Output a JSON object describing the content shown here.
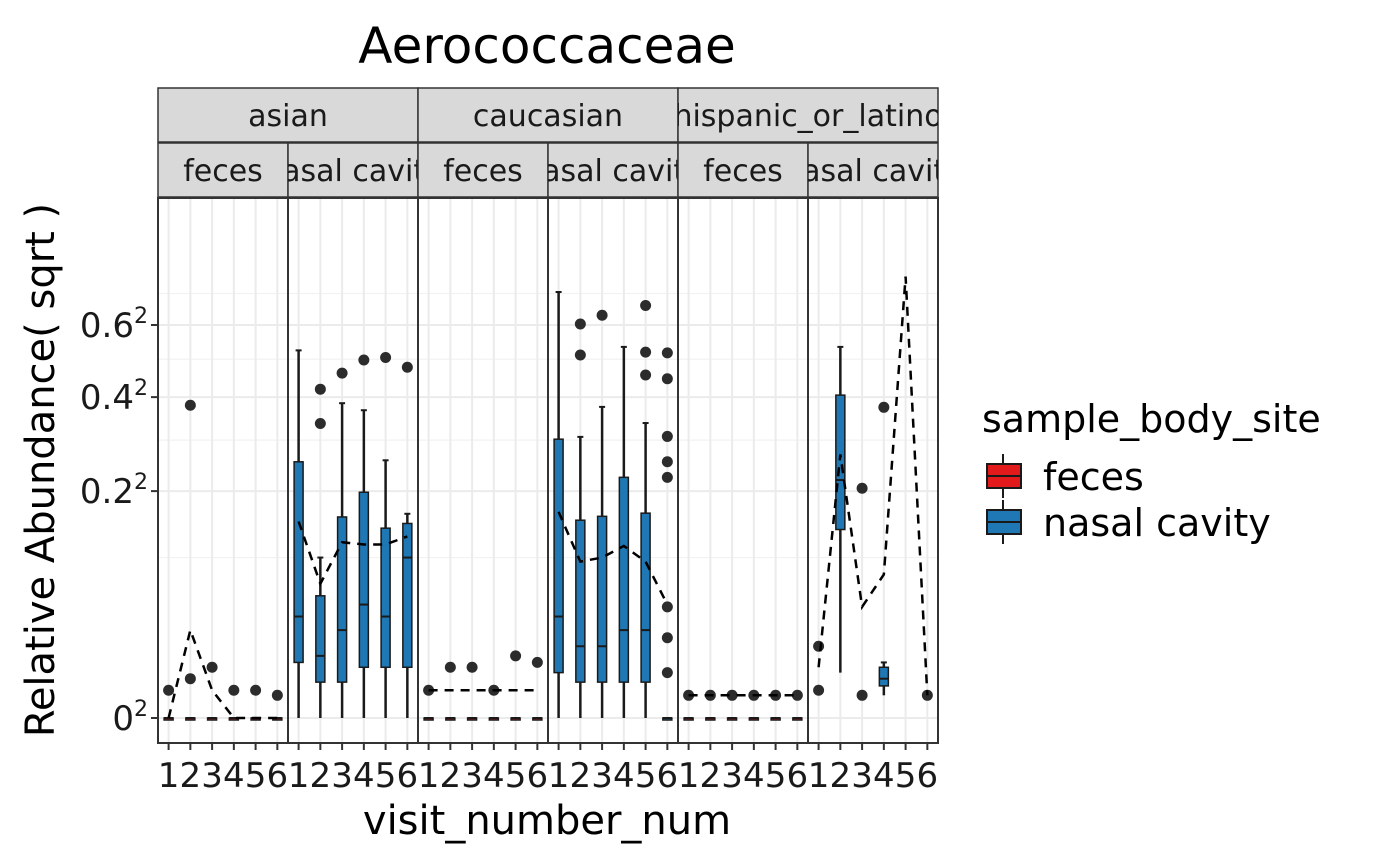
{
  "chart_data": {
    "type": "box",
    "title": "Aerococcaceae",
    "xlabel": "visit_number_num",
    "ylabel": "Relative Abundance( sqrt )",
    "y_scale": "sqrt",
    "ylim": [
      0,
      0.87
    ],
    "y_ticks": [
      0,
      0.2,
      0.4,
      0.6
    ],
    "y_tick_labels": [
      "0",
      "0.2",
      "0.4",
      "0.6"
    ],
    "y_tick_superscript": "2",
    "x_categories": [
      "1",
      "2",
      "3",
      "4",
      "5",
      "6"
    ],
    "facet_rows": [
      "asian",
      "caucasian",
      "hispanic_or_latino"
    ],
    "facet_row_labels": [
      "asian",
      "caucasian",
      "hispanic_or_latino"
    ],
    "facet_cols": [
      "feces",
      "nasal cavity"
    ],
    "facet_col_labels": [
      "feces",
      "nasal cavity"
    ],
    "grid": true,
    "legend": {
      "title": "sample_body_site",
      "position": "right",
      "entries": [
        {
          "name": "feces",
          "color": "#e31a1c"
        },
        {
          "name": "nasal cavity",
          "color": "#1f78b4"
        }
      ]
    },
    "panels": [
      {
        "group": "asian",
        "site": "feces",
        "boxes": [
          {
            "x": 1,
            "q1": 0,
            "median": 0,
            "q3": 0,
            "lo": 0,
            "hi": 0
          },
          {
            "x": 2,
            "q1": 0,
            "median": 0,
            "q3": 0,
            "lo": 0,
            "hi": 0
          },
          {
            "x": 3,
            "q1": 0,
            "median": 0,
            "q3": 0,
            "lo": 0,
            "hi": 0
          },
          {
            "x": 4,
            "q1": 0,
            "median": 0,
            "q3": 0,
            "lo": 0,
            "hi": 0
          },
          {
            "x": 5,
            "q1": 0,
            "median": 0,
            "q3": 0,
            "lo": 0,
            "hi": 0
          },
          {
            "x": 6,
            "q1": 0,
            "median": 0,
            "q3": 0,
            "lo": 0,
            "hi": 0
          }
        ],
        "outliers": [
          [
            2,
            0.38
          ],
          [
            1,
            0.003
          ],
          [
            2,
            0.006
          ],
          [
            3,
            0.01
          ],
          [
            4,
            0.003
          ],
          [
            5,
            0.003
          ],
          [
            6,
            0.002
          ]
        ],
        "mean_line": [
          0,
          0.03,
          0.003,
          0,
          0,
          0
        ]
      },
      {
        "group": "asian",
        "site": "nasal cavity",
        "boxes": [
          {
            "x": 1,
            "q1": 0.012,
            "median": 0.04,
            "q3": 0.255,
            "lo": 0,
            "hi": 0.525
          },
          {
            "x": 2,
            "q1": 0.005,
            "median": 0.015,
            "q3": 0.058,
            "lo": 0,
            "hi": 0.1
          },
          {
            "x": 3,
            "q1": 0.005,
            "median": 0.03,
            "q3": 0.157,
            "lo": 0,
            "hi": 0.385
          },
          {
            "x": 4,
            "q1": 0.01,
            "median": 0.05,
            "q3": 0.198,
            "lo": 0,
            "hi": 0.368
          },
          {
            "x": 5,
            "q1": 0.01,
            "median": 0.04,
            "q3": 0.14,
            "lo": 0,
            "hi": 0.258
          },
          {
            "x": 6,
            "q1": 0.01,
            "median": 0.1,
            "q3": 0.147,
            "lo": 0,
            "hi": 0.162
          }
        ],
        "outliers": [
          [
            2,
            0.42
          ],
          [
            2,
            0.337
          ],
          [
            3,
            0.462
          ],
          [
            4,
            0.498
          ],
          [
            5,
            0.505
          ],
          [
            6,
            0.478
          ]
        ],
        "mean_line": [
          0.15,
          0.07,
          0.12,
          0.117,
          0.117,
          0.128
        ]
      },
      {
        "group": "caucasian",
        "site": "feces",
        "boxes": [
          {
            "x": 1,
            "q1": 0,
            "median": 0,
            "q3": 0,
            "lo": 0,
            "hi": 0
          },
          {
            "x": 2,
            "q1": 0,
            "median": 0,
            "q3": 0,
            "lo": 0,
            "hi": 0
          },
          {
            "x": 3,
            "q1": 0,
            "median": 0,
            "q3": 0,
            "lo": 0,
            "hi": 0
          },
          {
            "x": 4,
            "q1": 0,
            "median": 0,
            "q3": 0,
            "lo": 0,
            "hi": 0
          },
          {
            "x": 5,
            "q1": 0,
            "median": 0,
            "q3": 0,
            "lo": 0,
            "hi": 0
          },
          {
            "x": 6,
            "q1": 0,
            "median": 0,
            "q3": 0,
            "lo": 0,
            "hi": 0
          }
        ],
        "outliers": [
          [
            1,
            0.003
          ],
          [
            2,
            0.01
          ],
          [
            3,
            0.01
          ],
          [
            4,
            0.003
          ],
          [
            5,
            0.015
          ],
          [
            6,
            0.012
          ]
        ],
        "mean_line": [
          0.003,
          0.003,
          0.003,
          0.003,
          0.003,
          0.003
        ]
      },
      {
        "group": "caucasian",
        "site": "nasal cavity",
        "boxes": [
          {
            "x": 1,
            "q1": 0.008,
            "median": 0.04,
            "q3": 0.302,
            "lo": 0,
            "hi": 0.705
          },
          {
            "x": 2,
            "q1": 0.005,
            "median": 0.02,
            "q3": 0.152,
            "lo": 0,
            "hi": 0.307
          },
          {
            "x": 3,
            "q1": 0.005,
            "median": 0.02,
            "q3": 0.158,
            "lo": 0,
            "hi": 0.376
          },
          {
            "x": 4,
            "q1": 0.005,
            "median": 0.03,
            "q3": 0.225,
            "lo": 0,
            "hi": 0.535
          },
          {
            "x": 5,
            "q1": 0.005,
            "median": 0.03,
            "q3": 0.163,
            "lo": 0,
            "hi": 0.338
          },
          {
            "x": 6,
            "q1": 0,
            "median": 0,
            "q3": 0,
            "lo": 0,
            "hi": 0
          }
        ],
        "outliers": [
          [
            2,
            0.603
          ],
          [
            2,
            0.512
          ],
          [
            3,
            0.63
          ],
          [
            5,
            0.661
          ],
          [
            5,
            0.52
          ],
          [
            5,
            0.457
          ],
          [
            6,
            0.518
          ],
          [
            6,
            0.447
          ],
          [
            6,
            0.308
          ],
          [
            6,
            0.255
          ],
          [
            6,
            0.225
          ],
          [
            6,
            0.048
          ],
          [
            6,
            0.025
          ],
          [
            6,
            0.008
          ]
        ],
        "mean_line": [
          0.165,
          0.095,
          0.1,
          0.115,
          0.095,
          0.05
        ]
      },
      {
        "group": "hispanic_or_latino",
        "site": "feces",
        "boxes": [
          {
            "x": 1,
            "q1": 0,
            "median": 0,
            "q3": 0,
            "lo": 0,
            "hi": 0
          },
          {
            "x": 2,
            "q1": 0,
            "median": 0,
            "q3": 0,
            "lo": 0,
            "hi": 0
          },
          {
            "x": 3,
            "q1": 0,
            "median": 0,
            "q3": 0,
            "lo": 0,
            "hi": 0
          },
          {
            "x": 4,
            "q1": 0,
            "median": 0,
            "q3": 0,
            "lo": 0,
            "hi": 0
          },
          {
            "x": 5,
            "q1": 0,
            "median": 0,
            "q3": 0,
            "lo": 0,
            "hi": 0
          },
          {
            "x": 6,
            "q1": 0,
            "median": 0,
            "q3": 0,
            "lo": 0,
            "hi": 0
          }
        ],
        "outliers": [
          [
            1,
            0.002
          ],
          [
            2,
            0.002
          ],
          [
            3,
            0.002
          ],
          [
            4,
            0.002
          ],
          [
            5,
            0.002
          ],
          [
            6,
            0.002
          ]
        ],
        "mean_line": [
          0.002,
          0.002,
          0.002,
          0.002,
          0.002,
          0.002
        ]
      },
      {
        "group": "hispanic_or_latino",
        "site": "nasal cavity",
        "boxes": [
          {
            "x": 2,
            "q1": 0.138,
            "median": 0.22,
            "q3": 0.405,
            "lo": 0.008,
            "hi": 0.535
          },
          {
            "x": 4,
            "q1": 0.004,
            "median": 0.006,
            "q3": 0.01,
            "lo": 0.002,
            "hi": 0.012
          }
        ],
        "outliers": [
          [
            1,
            0.02
          ],
          [
            1,
            0.003
          ],
          [
            3,
            0.205
          ],
          [
            3,
            0.002
          ],
          [
            4,
            0.375
          ],
          [
            6,
            0.002
          ]
        ],
        "mean_line": [
          0.01,
          0.27,
          0.048,
          0.08,
          0.757,
          0.002
        ]
      }
    ]
  }
}
